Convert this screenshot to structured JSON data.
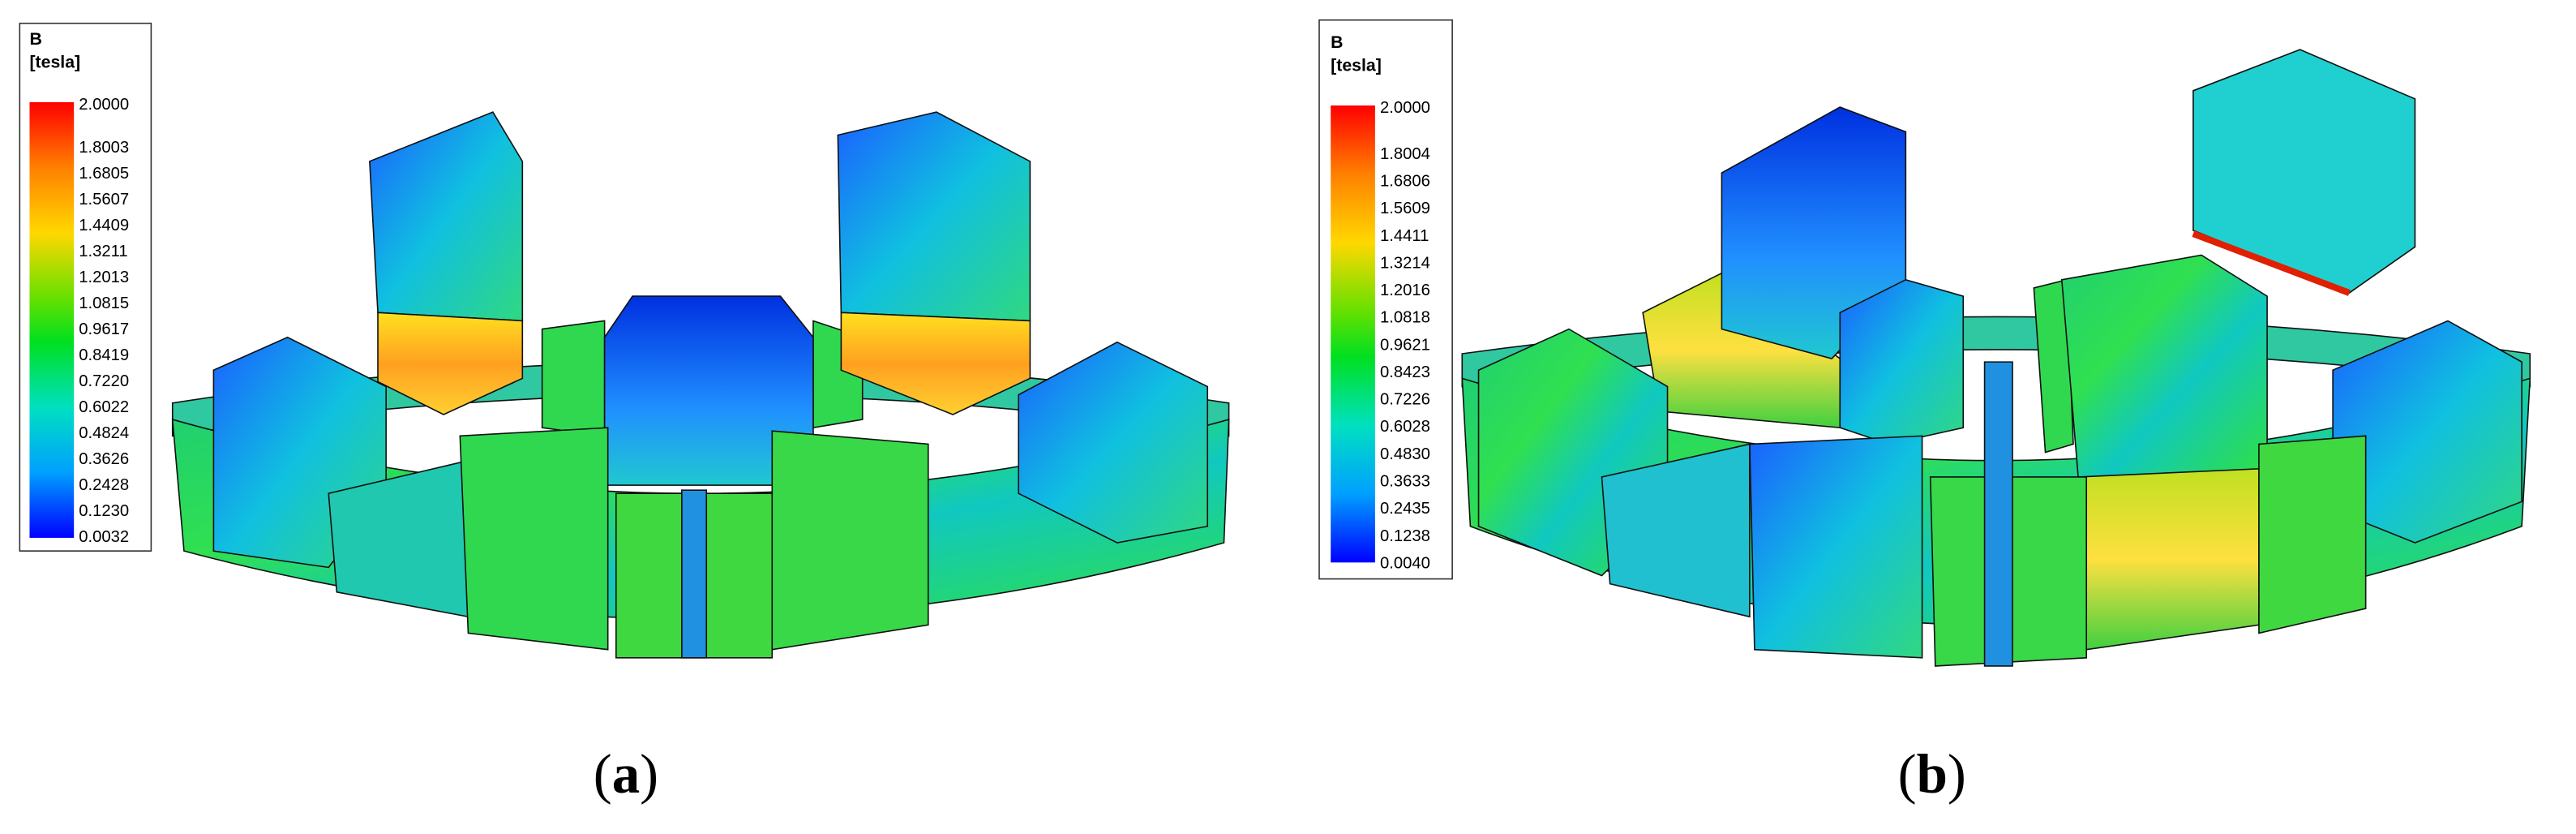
{
  "panels": [
    {
      "legend": {
        "title": "B",
        "unit": "[tesla]",
        "labels": [
          "2.0000",
          "1.8003",
          "1.6805",
          "1.5607",
          "1.4409",
          "1.3211",
          "1.2013",
          "1.0815",
          "0.9617",
          "0.8419",
          "0.7220",
          "0.6022",
          "0.4824",
          "0.3626",
          "0.2428",
          "0.1230",
          "0.0032"
        ]
      },
      "caption": {
        "open": "(",
        "letter": "a",
        "close": ")"
      }
    },
    {
      "legend": {
        "title": "B",
        "unit": "[tesla]",
        "labels": [
          "2.0000",
          "1.8004",
          "1.6806",
          "1.5609",
          "1.4411",
          "1.3214",
          "1.2016",
          "1.0818",
          "0.9621",
          "0.8423",
          "0.7226",
          "0.6028",
          "0.4830",
          "0.3633",
          "0.2435",
          "0.1238",
          "0.0040"
        ]
      },
      "caption": {
        "open": "(",
        "letter": "b",
        "close": ")"
      }
    }
  ]
}
